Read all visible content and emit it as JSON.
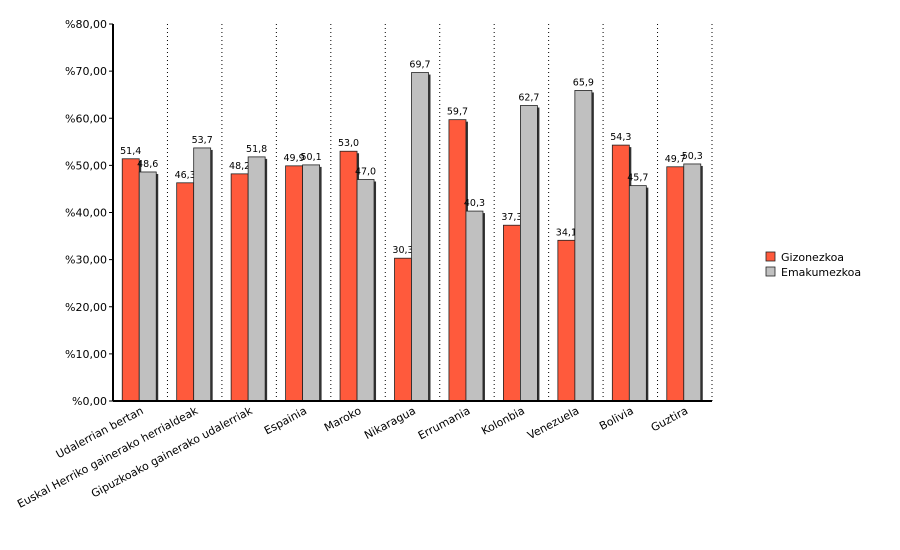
{
  "chart_data": {
    "type": "bar",
    "categories": [
      "Udalerrian bertan",
      "Euskal Herriko gainerako herrialdeak",
      "Gipuzkoako gainerako udalerriak",
      "Espainia",
      "Maroko",
      "Nikaragua",
      "Errumania",
      "Kolonbia",
      "Venezuela",
      "Bolivia",
      "Guztira"
    ],
    "series": [
      {
        "name": "Gizonezkoa",
        "color": "#ff5a3c",
        "values": [
          51.4,
          46.3,
          48.2,
          49.9,
          53.0,
          30.3,
          59.7,
          37.3,
          34.1,
          54.3,
          49.7
        ],
        "value_labels": [
          "51,4",
          "46,3",
          "48,2",
          "49,9",
          "53,0",
          "30,3",
          "59,7",
          "37,3",
          "34,1",
          "54,3",
          "49,7"
        ]
      },
      {
        "name": "Emakumezkoa",
        "color": "#c0c0c0",
        "values": [
          48.6,
          53.7,
          51.8,
          50.1,
          47.0,
          69.7,
          40.3,
          62.7,
          65.9,
          45.7,
          50.3
        ],
        "value_labels": [
          "48,6",
          "53,7",
          "51,8",
          "50,1",
          "47,0",
          "69,7",
          "40,3",
          "62,7",
          "65,9",
          "45,7",
          "50,3"
        ]
      }
    ],
    "ylim": [
      0,
      80
    ],
    "yticks": [
      {
        "value": 0,
        "label": "%0,00"
      },
      {
        "value": 10,
        "label": "%10,00"
      },
      {
        "value": 20,
        "label": "%20,00"
      },
      {
        "value": 30,
        "label": "%30,00"
      },
      {
        "value": 40,
        "label": "%40,00"
      },
      {
        "value": 50,
        "label": "%50,00"
      },
      {
        "value": 60,
        "label": "%60,00"
      },
      {
        "value": 70,
        "label": "%70,00"
      },
      {
        "value": 80,
        "label": "%80,00"
      }
    ],
    "grid": true,
    "legend": "right"
  }
}
